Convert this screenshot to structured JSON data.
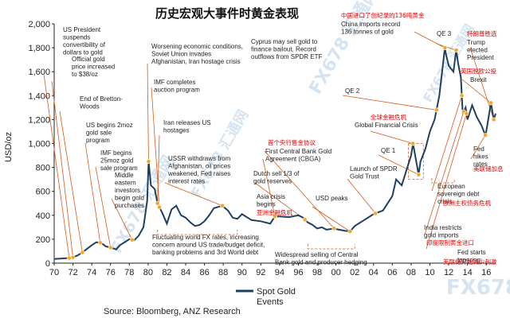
{
  "chart_data": {
    "type": "line",
    "title": "历史宏观大事件时黄金表现",
    "ylabel": "USD/oz",
    "xlim": [
      1970,
      2017
    ],
    "ylim": [
      0,
      2000
    ],
    "yticks": [
      0,
      200,
      400,
      600,
      800,
      1000,
      1200,
      1400,
      1600,
      1800,
      2000
    ],
    "y_tick_labels": [
      "0",
      "200",
      "400",
      "600",
      "800",
      "1,000",
      "1,200",
      "1,400",
      "1,600",
      "1,800",
      "2,000"
    ],
    "xticks": [
      1970,
      1972,
      1974,
      1976,
      1978,
      1980,
      1982,
      1984,
      1986,
      1988,
      1990,
      1992,
      1994,
      1996,
      1998,
      2000,
      2002,
      2004,
      2006,
      2008,
      2010,
      2012,
      2014,
      2016
    ],
    "x_tick_labels": [
      "70",
      "72",
      "74",
      "76",
      "78",
      "80",
      "82",
      "84",
      "86",
      "88",
      "90",
      "92",
      "94",
      "96",
      "98",
      "00",
      "02",
      "04",
      "06",
      "08",
      "10",
      "12",
      "14",
      "16"
    ],
    "grid": false,
    "legend": "bottom-center",
    "series": [
      {
        "name": "Spot Gold",
        "x": [
          1970,
          1971,
          1971.6,
          1972,
          1972.5,
          1973,
          1973.5,
          1974,
          1974.5,
          1975,
          1975.5,
          1976,
          1976.6,
          1977,
          1978,
          1978.5,
          1979,
          1979.5,
          1979.9,
          1980.05,
          1980.3,
          1980.7,
          1981,
          1981.5,
          1982,
          1982.5,
          1983,
          1983.5,
          1984,
          1984.5,
          1985,
          1985.5,
          1986,
          1986.5,
          1987,
          1987.9,
          1988.5,
          1989,
          1989.5,
          1990,
          1991,
          1992,
          1993,
          1993.5,
          1994,
          1995,
          1996,
          1996.5,
          1997,
          1997.5,
          1998,
          1998.5,
          1999,
          1999.8,
          2000,
          2001,
          2001.5,
          2002,
          2003,
          2004,
          2005,
          2006,
          2006.4,
          2007,
          2008,
          2008.2,
          2008.8,
          2009,
          2009.5,
          2010,
          2010.5,
          2011,
          2011.6,
          2011.7,
          2012,
          2012.5,
          2012.8,
          2013,
          2013.3,
          2013.5,
          2013.8,
          2014,
          2014.5,
          2015,
          2015.5,
          2015.9,
          2016,
          2016.5,
          2016.8,
          2017
        ],
        "values": [
          35,
          40,
          43,
          48,
          65,
          90,
          120,
          150,
          175,
          170,
          140,
          130,
          115,
          150,
          200,
          190,
          230,
          300,
          520,
          850,
          650,
          620,
          500,
          420,
          330,
          450,
          480,
          400,
          380,
          340,
          310,
          320,
          350,
          400,
          460,
          480,
          440,
          380,
          370,
          410,
          360,
          350,
          330,
          390,
          390,
          385,
          400,
          380,
          340,
          320,
          290,
          300,
          280,
          290,
          285,
          270,
          265,
          310,
          360,
          410,
          440,
          560,
          700,
          650,
          900,
          1000,
          740,
          850,
          950,
          1100,
          1200,
          1400,
          1800,
          1750,
          1650,
          1600,
          1780,
          1670,
          1550,
          1250,
          1300,
          1200,
          1320,
          1220,
          1150,
          1070,
          1100,
          1340,
          1200,
          1250
        ]
      }
    ],
    "source": "Source: Bloomberg, ANZ Research",
    "legend_label": "Spot Gold",
    "legend_sub": "Events",
    "annotations": [
      {
        "text": [
          "US President",
          "suspends",
          "convertibility of",
          "dollars to gold"
        ],
        "lang": "en"
      },
      {
        "text": [
          "Official gold",
          "price increased",
          "to $38/oz"
        ],
        "lang": "en"
      },
      {
        "text": [
          "End of Bretton-",
          "Woods"
        ],
        "lang": "en"
      },
      {
        "text": [
          "US begins 2moz",
          "gold sale",
          "program"
        ],
        "lang": "en"
      },
      {
        "text": [
          "IMF begins",
          "25moz gold",
          "sale program"
        ],
        "lang": "en"
      },
      {
        "text": [
          "Middle",
          "eastern",
          "investors",
          "begin gold",
          "purchases"
        ],
        "lang": "en"
      },
      {
        "text": [
          "Worsening economic conditions,",
          "Soviet Union invades",
          "Afghanistan, Iran hostage crisis"
        ],
        "lang": "en"
      },
      {
        "text": [
          "IMF completes",
          "auction program"
        ],
        "lang": "en"
      },
      {
        "text": [
          "Iran releases US",
          "hostages"
        ],
        "lang": "en"
      },
      {
        "text": [
          "USSR withdraws from",
          "Afghanistan, oil prices",
          "weakened, Fed raises",
          "interest rates"
        ],
        "lang": "en"
      },
      {
        "text": [
          "Fluctuating world FX rates, increasing",
          "concern around US trade/budget deficit,",
          "banking problems and 3rd World debt"
        ],
        "lang": "en"
      },
      {
        "text": [
          "Cyprus may sell gold to",
          "finance bailout, Record",
          "outflows from SPDR ETF"
        ],
        "lang": "en"
      },
      {
        "text": [
          "中国进口了创纪录的136吨黄金"
        ],
        "lang": "cn"
      },
      {
        "text": [
          "China imports record",
          "136 tonnes of gold"
        ],
        "lang": "en"
      },
      {
        "text": [
          "QE 3"
        ],
        "lang": "en"
      },
      {
        "text": [
          "特朗普胜选"
        ],
        "lang": "cn"
      },
      {
        "text": [
          "Trump",
          "elected",
          "President"
        ],
        "lang": "en"
      },
      {
        "text": [
          "英国脱欧公投"
        ],
        "lang": "cn"
      },
      {
        "text": [
          "Brexit"
        ],
        "lang": "en"
      },
      {
        "text": [
          "QE 2"
        ],
        "lang": "en"
      },
      {
        "text": [
          "全球金融危机"
        ],
        "lang": "cn"
      },
      {
        "text": [
          "Global Financial Crisis"
        ],
        "lang": "en"
      },
      {
        "text": [
          "首个央行售金协议"
        ],
        "lang": "cn"
      },
      {
        "text": [
          "First Central Bank Gold",
          "Agreement (CBGA)"
        ],
        "lang": "en"
      },
      {
        "text": [
          "Dutch sell 1/3 of",
          "gold reserves"
        ],
        "lang": "en"
      },
      {
        "text": [
          "Asia crisis",
          "begins"
        ],
        "lang": "en"
      },
      {
        "text": [
          "亚洲金融危机"
        ],
        "lang": "cn"
      },
      {
        "text": [
          "USD peaks"
        ],
        "lang": "en"
      },
      {
        "text": [
          "QE 1"
        ],
        "lang": "en"
      },
      {
        "text": [
          "Launch of SPDR",
          "Gold Trust"
        ],
        "lang": "en"
      },
      {
        "text": [
          "European",
          "sovereign debt",
          "crisis"
        ],
        "lang": "en"
      },
      {
        "text": [
          "欧洲主权债务危机"
        ],
        "lang": "cn"
      },
      {
        "text": [
          "Fed",
          "hikes",
          "rates"
        ],
        "lang": "en"
      },
      {
        "text": [
          "美联储加息"
        ],
        "lang": "cn"
      },
      {
        "text": [
          "India restricts",
          "gold imports"
        ],
        "lang": "en"
      },
      {
        "text": [
          "印度限制黄金进口"
        ],
        "lang": "cn"
      },
      {
        "text": [
          "Fed starts",
          "tapering"
        ],
        "lang": "en"
      },
      {
        "text": [
          "美联储开始减少刺激"
        ],
        "lang": "cn"
      },
      {
        "text": [
          "Widespread selling of Central",
          "Bank gold and producer hedging"
        ],
        "lang": "en"
      }
    ],
    "colors": {
      "line": "#1f3f5f",
      "marker": "#f5a623",
      "leader": "#d85a1a",
      "ann_cn": "#e00000",
      "axis": "#222222"
    }
  }
}
